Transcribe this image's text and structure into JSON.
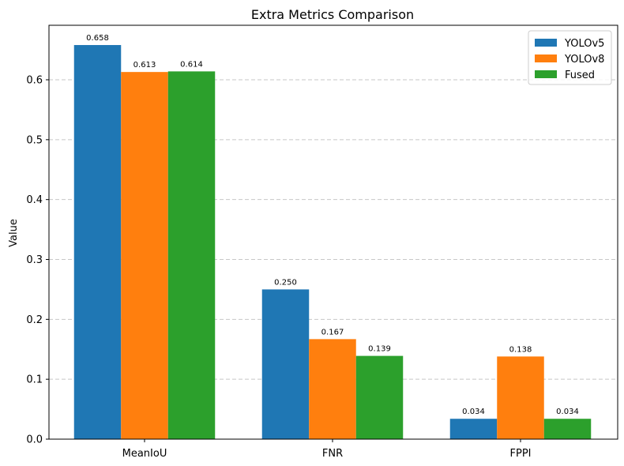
{
  "chart_data": {
    "type": "bar",
    "title": "Extra Metrics Comparison",
    "xlabel": "",
    "ylabel": "Value",
    "categories": [
      "MeanIoU",
      "FNR",
      "FPPI"
    ],
    "series": [
      {
        "name": "YOLOv5",
        "color": "#1f77b4",
        "values": [
          0.658,
          0.25,
          0.034
        ],
        "labels": [
          "0.658",
          "0.250",
          "0.034"
        ]
      },
      {
        "name": "YOLOv8",
        "color": "#ff7f0e",
        "values": [
          0.613,
          0.167,
          0.138
        ],
        "labels": [
          "0.613",
          "0.167",
          "0.138"
        ]
      },
      {
        "name": "Fused",
        "color": "#2ca02c",
        "values": [
          0.614,
          0.139,
          0.034
        ],
        "labels": [
          "0.614",
          "0.139",
          "0.034"
        ]
      }
    ],
    "ylim": [
      0,
      0.691
    ],
    "yticks": [
      0.0,
      0.1,
      0.2,
      0.3,
      0.4,
      0.5,
      0.6
    ],
    "ytick_labels": [
      "0.0",
      "0.1",
      "0.2",
      "0.3",
      "0.4",
      "0.5",
      "0.6"
    ],
    "grid": "y-dashed",
    "legend_position": "top-right"
  }
}
